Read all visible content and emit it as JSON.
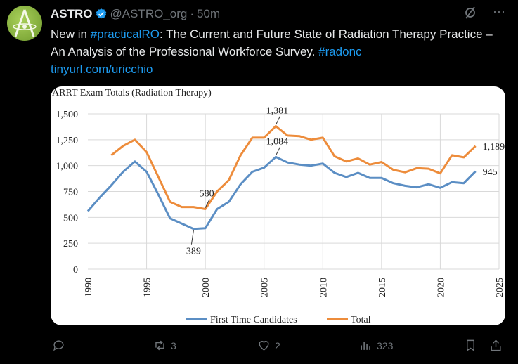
{
  "tweet": {
    "author_name": "ASTRO",
    "handle": "@ASTRO_org",
    "separator": "·",
    "time": "50m",
    "text_parts": [
      {
        "text": "New in ",
        "link": false
      },
      {
        "text": "#practicalRO",
        "link": true
      },
      {
        "text": ": The Current and Future State of Radiation Therapy Practice – An Analysis of the Professional Workforce Survey. ",
        "link": false
      },
      {
        "text": "#radonc",
        "link": true
      }
    ],
    "url": "tinyurl.com/uricchio"
  },
  "actions": {
    "replies": "",
    "reposts": "3",
    "likes": "2",
    "views": "323"
  },
  "colors": {
    "blue": "#5b8ec4",
    "orange": "#ed8c3b",
    "link": "#1d9bf0"
  },
  "chart_data": {
    "type": "line",
    "title": "ARRT Exam Totals (Radiation  Therapy)",
    "xlim": [
      1990,
      2025
    ],
    "ylim": [
      0,
      1500
    ],
    "x_ticks": [
      "1990",
      "1995",
      "2000",
      "2005",
      "2010",
      "2015",
      "2020",
      "2025"
    ],
    "y_ticks": [
      "0",
      "250",
      "500",
      "750",
      "1,000",
      "1,250",
      "1,500"
    ],
    "grid": true,
    "legend": "bottom",
    "series": [
      {
        "name": "First Time Candidates",
        "color": "#5b8ec4",
        "start": 1990,
        "values": [
          560,
          690,
          810,
          940,
          1040,
          940,
          720,
          490,
          440,
          389,
          395,
          580,
          650,
          820,
          940,
          980,
          1084,
          1030,
          1010,
          1000,
          1020,
          930,
          890,
          930,
          880,
          880,
          830,
          805,
          790,
          820,
          785,
          840,
          830,
          945
        ]
      },
      {
        "name": "Total",
        "color": "#ed8c3b",
        "start": 1992,
        "values": [
          1100,
          1190,
          1250,
          1130,
          890,
          650,
          600,
          600,
          580,
          750,
          860,
          1100,
          1270,
          1270,
          1381,
          1290,
          1285,
          1250,
          1270,
          1090,
          1040,
          1070,
          1010,
          1035,
          960,
          935,
          975,
          970,
          925,
          1100,
          1080,
          1189
        ]
      }
    ],
    "annotations": [
      {
        "text": "389",
        "year": 1999,
        "value": 389,
        "series": 0,
        "pos": "below"
      },
      {
        "text": "580",
        "year": 2000,
        "value": 580,
        "series": 1,
        "pos": "above"
      },
      {
        "text": "1,084",
        "year": 2006,
        "value": 1084,
        "series": 0,
        "pos": "above"
      },
      {
        "text": "1,381",
        "year": 2006,
        "value": 1381,
        "series": 1,
        "pos": "above"
      },
      {
        "text": "1,189",
        "year": 2023,
        "value": 1189,
        "series": 1,
        "pos": "right"
      },
      {
        "text": "945",
        "year": 2023,
        "value": 945,
        "series": 0,
        "pos": "right"
      }
    ]
  }
}
